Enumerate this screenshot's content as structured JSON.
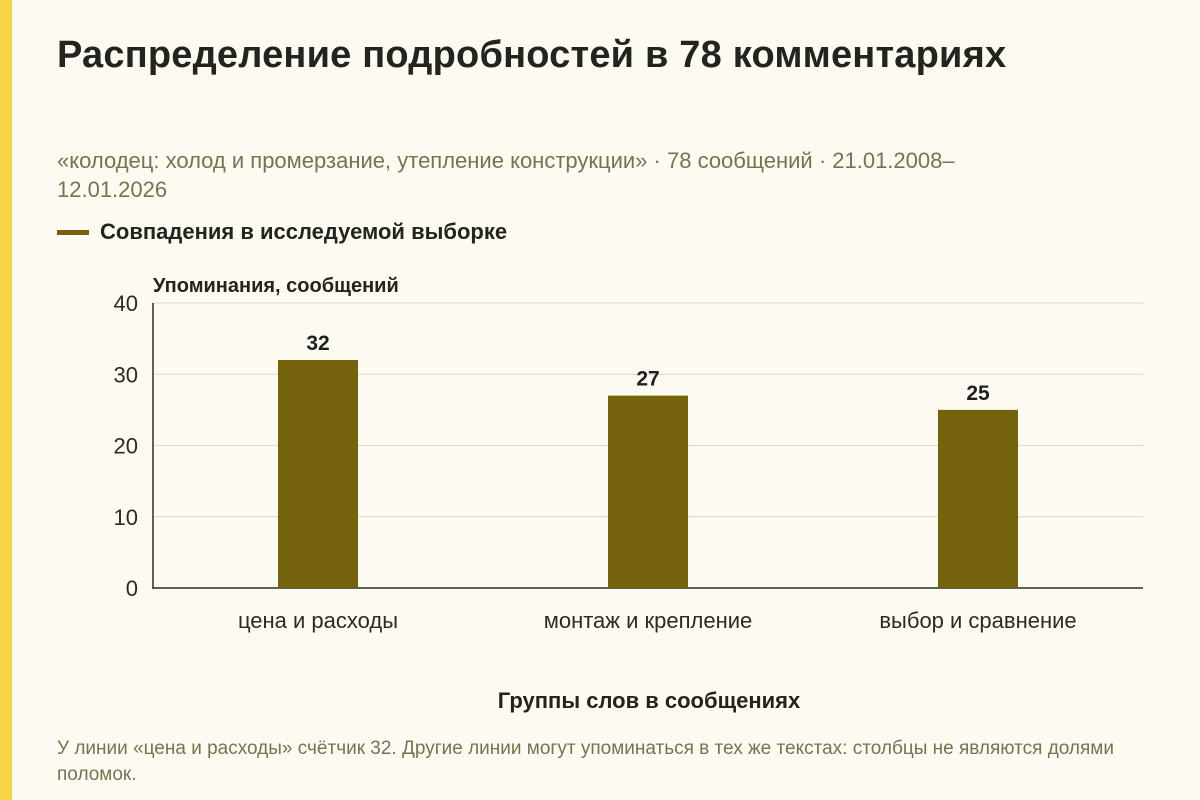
{
  "title": "Распределение подробностей в 78 комментариях",
  "subtitle": "«колодец: холод и промерзание, утепление конструкции» · 78 сообщений · 21.01.2008–12.01.2026",
  "legend": {
    "label": "Совпадения в исследуемой выборке"
  },
  "footnote": "У линии «цена и расходы» счётчик 32. Другие линии могут упоминаться в тех же текстах: столбцы не являются долями поломок.",
  "colors": {
    "bar": "#74620d",
    "accent": "#f8d343",
    "grid": "#dcd8ca",
    "axis": "#2a2a2a",
    "muted": "#7a7150"
  },
  "chart_data": {
    "type": "bar",
    "title": "Распределение подробностей в 78 комментариях",
    "xlabel": "Группы слов в сообщениях",
    "ylabel": "Упоминания, сообщений",
    "ylim": [
      0,
      40
    ],
    "yticks": [
      0,
      10,
      20,
      30,
      40
    ],
    "grid": true,
    "legend_position": "top-left",
    "categories": [
      "цена и расходы",
      "монтаж и крепление",
      "выбор и сравнение"
    ],
    "series": [
      {
        "name": "Совпадения в исследуемой выборке",
        "values": [
          32,
          27,
          25
        ]
      }
    ]
  }
}
